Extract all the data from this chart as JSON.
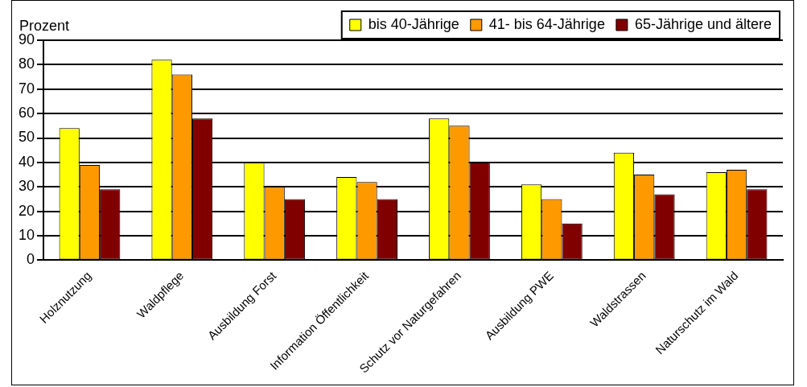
{
  "chart_data": {
    "type": "bar",
    "ylabel": "Prozent",
    "categories": [
      "Holznutzung",
      "Waldpflege",
      "Ausbildung Forst",
      "Information Öffentlichkeit",
      "Schutz vor Naturgefahren",
      "Ausbildung PWE",
      "Waldstrassen",
      "Naturschutz im Wald"
    ],
    "series": [
      {
        "name": "bis 40-Jährige",
        "color": "#ffff00",
        "values": [
          54,
          82,
          40,
          34,
          58,
          31,
          44,
          36
        ]
      },
      {
        "name": "41- bis 64-Jährige",
        "color": "#ff9900",
        "values": [
          39,
          76,
          30,
          32,
          55,
          25,
          35,
          37
        ]
      },
      {
        "name": "65-Jährige und ältere",
        "color": "#800000",
        "values": [
          29,
          58,
          25,
          25,
          40,
          15,
          27,
          29
        ]
      }
    ],
    "ylim": [
      0,
      90
    ],
    "yticks": [
      0,
      10,
      20,
      30,
      40,
      50,
      60,
      70,
      80,
      90
    ],
    "grid": "y",
    "legend": "top right"
  }
}
